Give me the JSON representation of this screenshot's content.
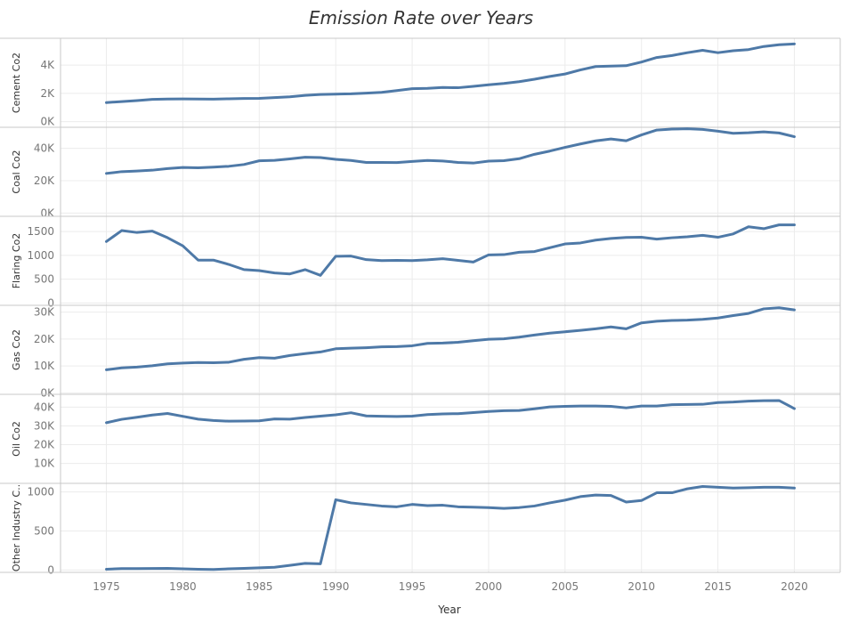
{
  "chart_data": {
    "type": "line",
    "title": "Emission Rate over Years",
    "xlabel": "Year",
    "x": [
      1975,
      1976,
      1977,
      1978,
      1979,
      1980,
      1981,
      1982,
      1983,
      1984,
      1985,
      1986,
      1987,
      1988,
      1989,
      1990,
      1991,
      1992,
      1993,
      1994,
      1995,
      1996,
      1997,
      1998,
      1999,
      2000,
      2001,
      2002,
      2003,
      2004,
      2005,
      2006,
      2007,
      2008,
      2009,
      2010,
      2011,
      2012,
      2013,
      2014,
      2015,
      2016,
      2017,
      2018,
      2019,
      2020
    ],
    "xticks": [
      "1975",
      "1980",
      "1985",
      "1990",
      "1995",
      "2000",
      "2005",
      "2010",
      "2015",
      "2020"
    ],
    "xlim": [
      1972,
      2023
    ],
    "line_color": "#4e79a7",
    "grid": true,
    "series": [
      {
        "name": "Cement Co2",
        "ylim": [
          -400,
          5900
        ],
        "yticks": [
          0,
          2000,
          4000
        ],
        "ytick_labels": [
          "0K",
          "2K",
          "4K"
        ],
        "values": [
          1350,
          1420,
          1490,
          1580,
          1600,
          1610,
          1600,
          1590,
          1620,
          1640,
          1650,
          1700,
          1760,
          1860,
          1920,
          1950,
          1970,
          2020,
          2070,
          2200,
          2330,
          2360,
          2420,
          2400,
          2500,
          2610,
          2700,
          2830,
          3000,
          3200,
          3370,
          3660,
          3900,
          3930,
          3960,
          4220,
          4540,
          4680,
          4880,
          5050,
          4880,
          5020,
          5100,
          5320,
          5440,
          5500
        ]
      },
      {
        "name": "Coal Co2",
        "ylim": [
          -2000,
          53000
        ],
        "yticks": [
          0,
          20000,
          40000
        ],
        "ytick_labels": [
          "0K",
          "20K",
          "40K"
        ],
        "values": [
          24500,
          25600,
          26000,
          26500,
          27500,
          28200,
          28000,
          28400,
          28900,
          30000,
          32300,
          32600,
          33500,
          34500,
          34300,
          33200,
          32500,
          31300,
          31300,
          31200,
          31900,
          32500,
          32200,
          31300,
          30900,
          32100,
          32400,
          33600,
          36300,
          38300,
          40600,
          42700,
          44600,
          45800,
          44700,
          48300,
          51300,
          51900,
          52100,
          51700,
          50600,
          49300,
          49600,
          50200,
          49500,
          47200
        ]
      },
      {
        "name": "Flaring Co2",
        "ylim": [
          -50,
          1820
        ],
        "yticks": [
          0,
          500,
          1000,
          1500
        ],
        "ytick_labels": [
          "0",
          "500",
          "1000",
          "1500"
        ],
        "values": [
          1290,
          1520,
          1480,
          1510,
          1370,
          1200,
          900,
          900,
          810,
          700,
          680,
          630,
          610,
          700,
          580,
          980,
          985,
          910,
          890,
          895,
          890,
          905,
          930,
          895,
          860,
          1010,
          1015,
          1065,
          1080,
          1160,
          1240,
          1260,
          1320,
          1355,
          1375,
          1380,
          1340,
          1370,
          1390,
          1420,
          1380,
          1450,
          1600,
          1560,
          1640,
          1640
        ]
      },
      {
        "name": "Gas Co2",
        "ylim": [
          -500,
          32500
        ],
        "yticks": [
          0,
          10000,
          20000,
          30000
        ],
        "ytick_labels": [
          "0K",
          "10K",
          "20K",
          "30K"
        ],
        "values": [
          8600,
          9300,
          9600,
          10100,
          10800,
          11100,
          11300,
          11200,
          11400,
          12500,
          13100,
          12900,
          13900,
          14600,
          15200,
          16400,
          16600,
          16800,
          17100,
          17200,
          17500,
          18400,
          18500,
          18800,
          19400,
          19900,
          20100,
          20700,
          21500,
          22200,
          22700,
          23200,
          23800,
          24500,
          23800,
          26000,
          26600,
          26900,
          27000,
          27300,
          27800,
          28700,
          29500,
          31200,
          31600,
          30800
        ]
      },
      {
        "name": "Oil Co2",
        "ylim": [
          -600,
          46800
        ],
        "yticks": [
          10000,
          20000,
          30000,
          40000
        ],
        "ytick_labels": [
          "10K",
          "20K",
          "30K",
          "40K"
        ],
        "values": [
          31700,
          33500,
          34600,
          35800,
          36600,
          35100,
          33600,
          32900,
          32500,
          32600,
          32700,
          33700,
          33600,
          34500,
          35200,
          35900,
          37000,
          35300,
          35100,
          35000,
          35200,
          36000,
          36400,
          36500,
          37100,
          37700,
          38100,
          38200,
          39100,
          40100,
          40400,
          40600,
          40600,
          40400,
          39600,
          40600,
          40600,
          41300,
          41400,
          41500,
          42400,
          42700,
          43200,
          43400,
          43500,
          39200
        ]
      },
      {
        "name": "Other Industry C..",
        "ylim": [
          -30,
          1110
        ],
        "yticks": [
          0,
          500,
          1000
        ],
        "ytick_labels": [
          "0",
          "500",
          "1000"
        ],
        "values": [
          10,
          18,
          18,
          20,
          22,
          15,
          10,
          7,
          15,
          22,
          28,
          35,
          60,
          85,
          80,
          900,
          860,
          840,
          820,
          810,
          840,
          825,
          830,
          810,
          805,
          800,
          790,
          800,
          820,
          860,
          895,
          940,
          960,
          955,
          870,
          890,
          990,
          990,
          1040,
          1070,
          1060,
          1050,
          1055,
          1060,
          1060,
          1050
        ]
      }
    ]
  }
}
